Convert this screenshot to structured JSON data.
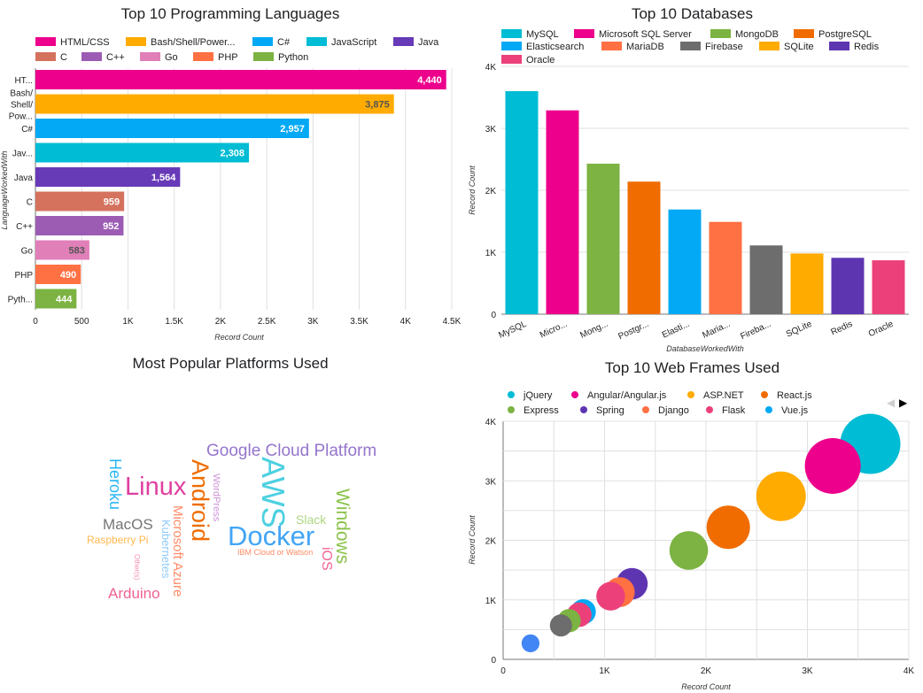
{
  "chart_data": [
    {
      "id": "languages",
      "type": "bar",
      "orientation": "horizontal",
      "title": "Top 10 Programming Languages",
      "xlabel": "Record Count",
      "ylabel": "LanguageWorkedWith",
      "xlim": [
        0,
        4500
      ],
      "xticks": [
        "0",
        "500",
        "1K",
        "1.5K",
        "2K",
        "2.5K",
        "3K",
        "3.5K",
        "4K",
        "4.5K"
      ],
      "grid": true,
      "legend_position": "top",
      "categories": [
        "HTML/CSS",
        "Bash/Shell/PowerShell",
        "C#",
        "JavaScript",
        "Java",
        "C",
        "C++",
        "Go",
        "PHP",
        "Python"
      ],
      "legend_labels": [
        "HTML/CSS",
        "Bash/Shell/Power...",
        "C#",
        "JavaScript",
        "Java",
        "C",
        "C++",
        "Go",
        "PHP",
        "Python"
      ],
      "tick_labels": [
        [
          "HT..."
        ],
        [
          "Bash/",
          "Shell/",
          "Pow..."
        ],
        [
          "C#"
        ],
        [
          "Jav..."
        ],
        [
          "Java"
        ],
        [
          "C"
        ],
        [
          "C++"
        ],
        [
          "Go"
        ],
        [
          "PHP"
        ],
        [
          "Pyth..."
        ]
      ],
      "values": [
        4440,
        3875,
        2957,
        2308,
        1564,
        959,
        952,
        583,
        490,
        444
      ],
      "value_labels": [
        "4,440",
        "3,875",
        "2,957",
        "2,308",
        "1,564",
        "959",
        "952",
        "583",
        "490",
        "444"
      ],
      "label_colors": [
        "#ffffff",
        "#555555",
        "#ffffff",
        "#ffffff",
        "#ffffff",
        "#ffffff",
        "#ffffff",
        "#555555",
        "#ffffff",
        "#ffffff"
      ],
      "colors": [
        "#ec008c",
        "#ffab00",
        "#03a9f4",
        "#00bcd4",
        "#673ab7",
        "#d4725e",
        "#9c5cb4",
        "#e07fb8",
        "#ff7043",
        "#7cb342"
      ]
    },
    {
      "id": "databases",
      "type": "bar",
      "orientation": "vertical",
      "title": "Top 10 Databases",
      "xlabel": "DatabaseWorkedWith",
      "ylabel": "Record Count",
      "ylim": [
        0,
        4000
      ],
      "yticks": [
        "0",
        "1K",
        "2K",
        "3K",
        "4K"
      ],
      "grid": true,
      "legend_position": "top",
      "categories": [
        "MySQL",
        "Microsoft SQL Server",
        "MongoDB",
        "PostgreSQL",
        "Elasticsearch",
        "MariaDB",
        "Firebase",
        "SQLite",
        "Redis",
        "Oracle"
      ],
      "tick_labels": [
        "MySQL",
        "Micro...",
        "Mong...",
        "Postgr...",
        "Elasti...",
        "Maria...",
        "Fireba...",
        "SQLite",
        "Redis",
        "Oracle"
      ],
      "values": [
        3600,
        3290,
        2430,
        2140,
        1690,
        1490,
        1110,
        980,
        910,
        870
      ],
      "colors": [
        "#00bcd4",
        "#ec008c",
        "#7cb342",
        "#f06c00",
        "#03a9f4",
        "#ff7043",
        "#6d6d6d",
        "#ffab00",
        "#5e35b1",
        "#ec407a"
      ]
    },
    {
      "id": "platforms",
      "type": "wordcloud",
      "title": "Most Popular Platforms Used",
      "words": [
        {
          "text": "Google Cloud Platform",
          "color": "#9575cd"
        },
        {
          "text": "Heroku",
          "color": "#29b6f6"
        },
        {
          "text": "Linux",
          "color": "#e040a0"
        },
        {
          "text": "Android",
          "color": "#ef6c00"
        },
        {
          "text": "WordPress",
          "color": "#ce93d8"
        },
        {
          "text": "AWS",
          "color": "#4dd0e1"
        },
        {
          "text": "Windows",
          "color": "#8bc34a"
        },
        {
          "text": "Slack",
          "color": "#aed581"
        },
        {
          "text": "MacOS",
          "color": "#757575"
        },
        {
          "text": "Docker",
          "color": "#42a5f5"
        },
        {
          "text": "Raspberry Pi",
          "color": "#ffb74d"
        },
        {
          "text": "Kubernetes",
          "color": "#90caf9"
        },
        {
          "text": "Microsoft Azure",
          "color": "#ff8a65"
        },
        {
          "text": "IBM Cloud or Watson",
          "color": "#ff8a65"
        },
        {
          "text": "iOS",
          "color": "#f06292"
        },
        {
          "text": "Other(s)",
          "color": "#f48fb1"
        },
        {
          "text": "Arduino",
          "color": "#f06292"
        }
      ]
    },
    {
      "id": "webframes",
      "type": "scatter",
      "title": "Top 10 Web Frames Used",
      "xlabel": "Record Count",
      "ylabel": "Record Count",
      "xlim": [
        0,
        4000
      ],
      "ylim": [
        0,
        4000
      ],
      "xticks": [
        "0",
        "1K",
        "2K",
        "3K",
        "4K"
      ],
      "yticks": [
        "0",
        "1K",
        "2K",
        "3K",
        "4K"
      ],
      "grid": true,
      "legend_position": "top",
      "series": [
        {
          "name": "jQuery",
          "x": 3620,
          "y": 3620,
          "color": "#00bcd4"
        },
        {
          "name": "Angular/Angular.js",
          "x": 3250,
          "y": 3250,
          "color": "#ec008c"
        },
        {
          "name": "ASP.NET",
          "x": 2740,
          "y": 2740,
          "color": "#ffab00"
        },
        {
          "name": "React.js",
          "x": 2220,
          "y": 2220,
          "color": "#f06c00"
        },
        {
          "name": "Express",
          "x": 1830,
          "y": 1830,
          "color": "#7cb342"
        },
        {
          "name": "Spring",
          "x": 1270,
          "y": 1270,
          "color": "#5e35b1"
        },
        {
          "name": "Django",
          "x": 1150,
          "y": 1130,
          "color": "#ff7043"
        },
        {
          "name": "Flask",
          "x": 1060,
          "y": 1060,
          "color": "#ec407a"
        },
        {
          "name": "Vue.js",
          "x": 790,
          "y": 800,
          "color": "#03a9f4"
        },
        {
          "name": "Extra 1",
          "x": 750,
          "y": 750,
          "color": "#ec407a",
          "legend": false
        },
        {
          "name": "Extra 2",
          "x": 650,
          "y": 650,
          "color": "#7cb342",
          "legend": false
        },
        {
          "name": "Extra 3",
          "x": 570,
          "y": 570,
          "color": "#6d6d6d",
          "legend": false
        },
        {
          "name": "Extra 4",
          "x": 270,
          "y": 270,
          "color": "#4285f4",
          "legend": false
        }
      ]
    }
  ],
  "navigation": {
    "prev_icon": "◀",
    "next_icon": "▶"
  }
}
